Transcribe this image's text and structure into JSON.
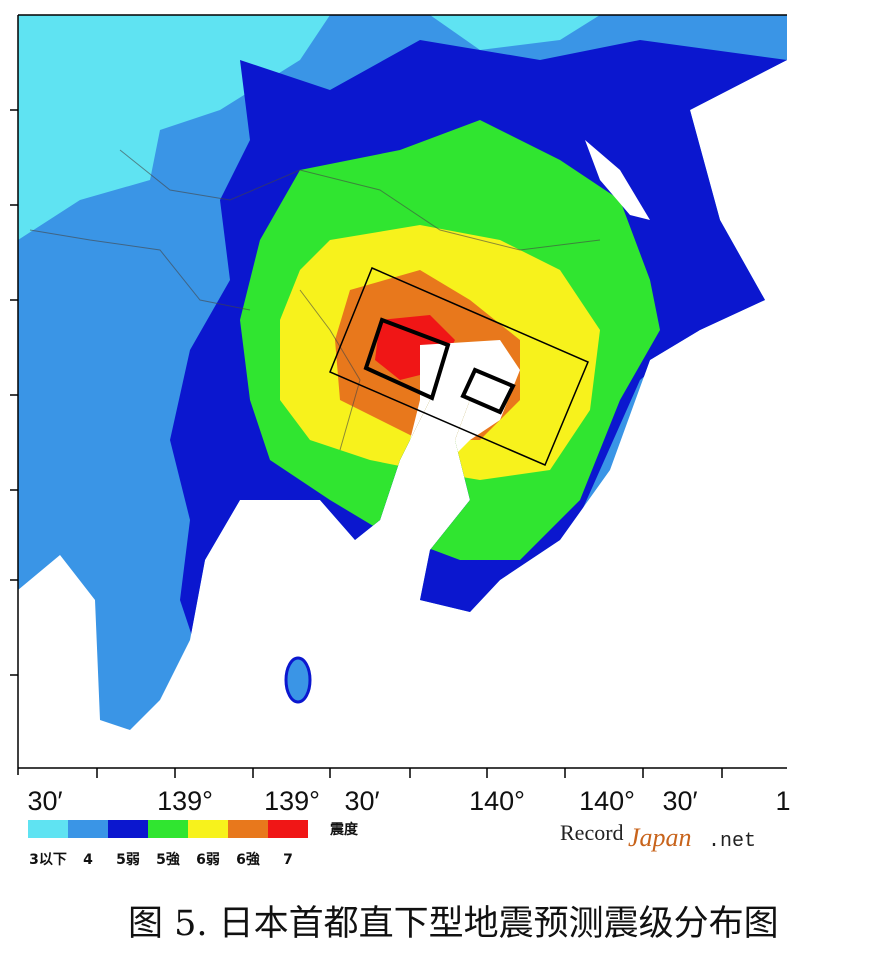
{
  "map": {
    "x_labels": [
      "30′",
      "139°",
      "139°",
      "30′",
      "140°",
      "140°",
      "30′",
      "1"
    ],
    "legend": {
      "title": "震度",
      "items": [
        {
          "label": "3以下",
          "color": "#5fe3f2"
        },
        {
          "label": "4",
          "color": "#3a95e6"
        },
        {
          "label": "5弱",
          "color": "#0b17cf"
        },
        {
          "label": "5強",
          "color": "#30e530"
        },
        {
          "label": "6弱",
          "color": "#f7f21c"
        },
        {
          "label": "6強",
          "color": "#e8781c"
        },
        {
          "label": "7",
          "color": "#f01616"
        }
      ]
    }
  },
  "watermark": {
    "record": "Record",
    "japan": "Japan",
    "net": ".net"
  },
  "caption": "图 5. 日本首都直下型地震预测震级分布图"
}
